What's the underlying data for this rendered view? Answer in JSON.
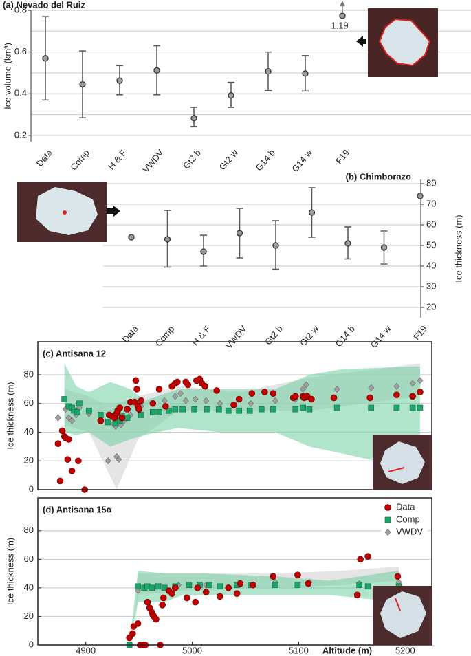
{
  "chart_data": [
    {
      "type": "errorbar",
      "title": "(a) Nevado del Ruiz",
      "y_label": "Ice volume (km³)",
      "categories": [
        "Data",
        "Comp",
        "H & F",
        "VWDV",
        "Gt2 b",
        "Gt2 w",
        "G14 b",
        "G14 w",
        "F19"
      ],
      "values": [
        0.57,
        0.445,
        0.463,
        0.512,
        0.283,
        0.392,
        0.507,
        0.497,
        1.19
      ],
      "lower": [
        0.37,
        0.285,
        0.395,
        0.395,
        0.243,
        0.335,
        0.415,
        0.413,
        null
      ],
      "upper": [
        0.77,
        0.605,
        0.535,
        0.63,
        0.335,
        0.455,
        0.6,
        0.583,
        null
      ],
      "value_labels": [
        null,
        null,
        null,
        null,
        null,
        null,
        null,
        null,
        "1.19"
      ],
      "ylim": [
        0.17,
        0.8
      ],
      "yticks": [
        0.2,
        0.4,
        0.6,
        0.8
      ],
      "minor_yticks": [
        0.3,
        0.5,
        0.7
      ],
      "y_axis_side": "left",
      "grid": true,
      "color": "#555555",
      "marker_color": "#9a9a9a"
    },
    {
      "type": "errorbar",
      "title": "(b) Chimborazo",
      "y_label": "Ice  thickness (m)",
      "categories": [
        "Data",
        "Comp",
        "H & F",
        "VWDV",
        "Gt2 b",
        "Gt2 w",
        "G14 b",
        "G14 w",
        "F19"
      ],
      "values": [
        54,
        53,
        47,
        56,
        50,
        66,
        51,
        49,
        74
      ],
      "lower": [
        null,
        39.5,
        40,
        44,
        38.5,
        54,
        43.5,
        41,
        null
      ],
      "upper": [
        null,
        67,
        55,
        68,
        62,
        78,
        59,
        57,
        null
      ],
      "ylim": [
        15,
        82
      ],
      "yticks": [
        20,
        30,
        40,
        50,
        60,
        70,
        80
      ],
      "y_axis_side": "right",
      "grid": true,
      "color": "#555555",
      "marker_color": "#9a9a9a"
    },
    {
      "type": "scatter",
      "title": "(c) Antisana 12",
      "y_label": "Ice  thickness (m)",
      "xlim": [
        4855,
        5225
      ],
      "ylim": [
        0,
        103
      ],
      "yticks": [
        0,
        20,
        40,
        60,
        80
      ],
      "grid": true,
      "bands": [
        {
          "color": "#cfcfcf",
          "x": [
            4880,
            4903,
            4916,
            4929,
            4949,
            4987,
            5045,
            5110,
            5214
          ],
          "lower": [
            45,
            40,
            20,
            0,
            35,
            55,
            55,
            55,
            65
          ],
          "upper": [
            70,
            65,
            60,
            60,
            65,
            72,
            68,
            78,
            88
          ]
        },
        {
          "color": "#6fd0a0",
          "x": [
            4880,
            4891,
            4903,
            4923,
            4942,
            4955,
            4987,
            5026,
            5078,
            5110,
            5142,
            5214
          ],
          "lower": [
            40,
            38,
            40,
            30,
            35,
            38,
            43,
            40,
            40,
            30,
            25,
            13
          ],
          "upper": [
            88,
            72,
            68,
            75,
            70,
            62,
            70,
            70,
            70,
            80,
            84,
            86
          ]
        }
      ],
      "series": [
        {
          "marker": "diamond",
          "color": "#a0a0a0",
          "x": [
            4874,
            4881,
            4884,
            4887,
            4891,
            4894,
            4903,
            4921,
            4926,
            4928,
            4929,
            4931,
            4933,
            4936,
            4942,
            4949,
            4952,
            4963,
            4974,
            4984,
            4989,
            4994,
            5003,
            5013,
            5026,
            5039,
            5055,
            5078,
            5097,
            5104,
            5107,
            5136,
            5168,
            5192,
            5207,
            5214
          ],
          "values": [
            50,
            56,
            50,
            48,
            52,
            57,
            53,
            20,
            46,
            44,
            23,
            21,
            45,
            48,
            52,
            59,
            58,
            60,
            62,
            65,
            67,
            62,
            63,
            62,
            60,
            59,
            60,
            62,
            63,
            70,
            73,
            70,
            71,
            72,
            74,
            76
          ]
        },
        {
          "marker": "square",
          "color": "#1ea46a",
          "x": [
            4880,
            4884,
            4887,
            4889,
            4892,
            4894,
            4903,
            4914,
            4921,
            4928,
            4932,
            4934,
            4939,
            4952,
            4963,
            4969,
            4978,
            4984,
            4991,
            5002,
            5014,
            5025,
            5034,
            5044,
            5054,
            5065,
            5076,
            5097,
            5104,
            5110,
            5136,
            5168,
            5192,
            5207,
            5214
          ],
          "values": [
            63,
            58,
            57,
            55,
            54,
            60,
            55,
            52,
            47,
            46,
            48,
            51,
            50,
            52,
            54,
            54,
            55,
            56,
            56,
            56,
            56,
            56,
            55,
            55,
            55,
            56,
            56,
            56,
            57,
            56,
            57,
            57,
            57,
            57,
            57
          ]
        },
        {
          "marker": "circle",
          "color": "#c00000",
          "x": [
            4874,
            4876,
            4878,
            4880,
            4881,
            4883,
            4884,
            4887,
            4893,
            4899,
            4914,
            4922,
            4925,
            4927,
            4929,
            4930,
            4932,
            4934,
            4939,
            4942,
            4946,
            4947,
            4948,
            4949,
            4950,
            4952,
            4963,
            4969,
            4975,
            4981,
            4984,
            4986,
            4994,
            4996,
            5004,
            5007,
            5009,
            5012,
            5023,
            5039,
            5044,
            5056,
            5068,
            5076,
            5095,
            5097,
            5104,
            5105,
            5108,
            5112,
            5133,
            5167,
            5192,
            5207,
            5214
          ],
          "values": [
            32,
            6,
            41,
            37,
            36,
            21,
            35,
            13,
            20,
            0,
            48,
            52,
            51,
            50,
            53,
            55,
            57,
            50,
            56,
            61,
            61,
            76,
            70,
            58,
            56,
            62,
            60,
            70,
            58,
            72,
            74,
            75,
            75,
            73,
            76,
            77,
            74,
            72,
            69,
            59,
            63,
            67,
            68,
            67,
            64,
            65,
            65,
            64,
            65,
            63,
            64,
            64,
            66,
            65,
            68
          ]
        }
      ]
    },
    {
      "type": "scatter",
      "title": "(d) Antisana 15α",
      "y_label": "Ice  thickness (m)",
      "x_label": "Altitude (m)",
      "xlim": [
        4855,
        5225
      ],
      "ylim": [
        0,
        103
      ],
      "xticks": [
        4900,
        5000,
        5100,
        5200
      ],
      "yticks": [
        0,
        20,
        40,
        60,
        80
      ],
      "grid": true,
      "legend": "upper right",
      "legend_order": [
        2,
        1,
        0
      ],
      "bands": [
        {
          "color": "#cfcfcf",
          "x": [
            4945,
            4949,
            4987,
            5078,
            5142,
            5194
          ],
          "lower": [
            0,
            35,
            38,
            40,
            42,
            45
          ],
          "upper": [
            0,
            50,
            50,
            50,
            52,
            55
          ]
        },
        {
          "color": "#6fd0a0",
          "x": [
            4941,
            4949,
            4974,
            4991,
            5013,
            5078,
            5129,
            5194
          ],
          "lower": [
            0,
            30,
            30,
            35,
            35,
            35,
            35,
            30
          ],
          "upper": [
            0,
            52,
            50,
            50,
            50,
            48,
            45,
            52
          ]
        }
      ],
      "series": [
        {
          "name": "VWDV",
          "marker": "diamond",
          "color": "#a0a0a0",
          "x": [
            4949,
            4962,
            4971,
            4987,
            5013,
            5045,
            5078,
            5110,
            5157,
            5194
          ],
          "values": [
            38,
            40,
            41,
            42,
            42,
            43,
            44,
            44,
            43,
            44
          ]
        },
        {
          "name": "Comp",
          "marker": "square",
          "color": "#1ea46a",
          "x": [
            4941,
            4949,
            4955,
            4958,
            4962,
            4968,
            4974,
            4984,
            4997,
            5007,
            5016,
            5026,
            5042,
            5055,
            5078,
            5099,
            5157,
            5165,
            5194
          ],
          "values": [
            0,
            41,
            40,
            41,
            40,
            41,
            40,
            41,
            42,
            42,
            42,
            41,
            42,
            42,
            42,
            42,
            42,
            41,
            41
          ]
        },
        {
          "name": "Data",
          "marker": "circle",
          "color": "#c00000",
          "x": [
            4941,
            4944,
            4945,
            4949,
            4951,
            4954,
            4956,
            4958,
            4960,
            4962,
            4963,
            4964,
            4966,
            4970,
            4972,
            4973,
            4978,
            4981,
            4984,
            4995,
            5003,
            5005,
            5013,
            5026,
            5034,
            5042,
            5045,
            5057,
            5076,
            5099,
            5109,
            5155,
            5158,
            5165,
            5193
          ],
          "values": [
            5,
            8,
            13,
            15,
            0,
            0,
            0,
            30,
            26,
            23,
            21,
            20,
            18,
            0,
            28,
            33,
            38,
            36,
            40,
            33,
            30,
            40,
            37,
            34,
            40,
            36,
            43,
            42,
            48,
            49,
            43,
            35,
            60,
            62,
            48
          ]
        }
      ]
    }
  ]
}
